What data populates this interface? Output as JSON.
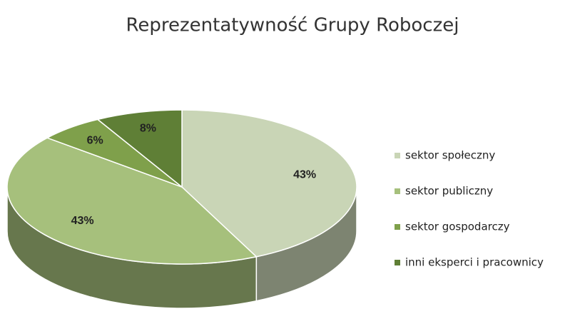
{
  "chart_data": {
    "type": "pie",
    "title": "Reprezentatywność Grupy Roboczej",
    "categories": [
      "sektor społeczny",
      "sektor publiczny",
      "sektor gospodarczy",
      "inni eksperci i pracownicy"
    ],
    "values": [
      43,
      43,
      6,
      8
    ],
    "value_labels": [
      "43%",
      "43%",
      "6%",
      "8%"
    ],
    "colors": [
      "#c9d5b6",
      "#a6c07c",
      "#7fa04b",
      "#5f7f36"
    ],
    "legend": "right"
  }
}
